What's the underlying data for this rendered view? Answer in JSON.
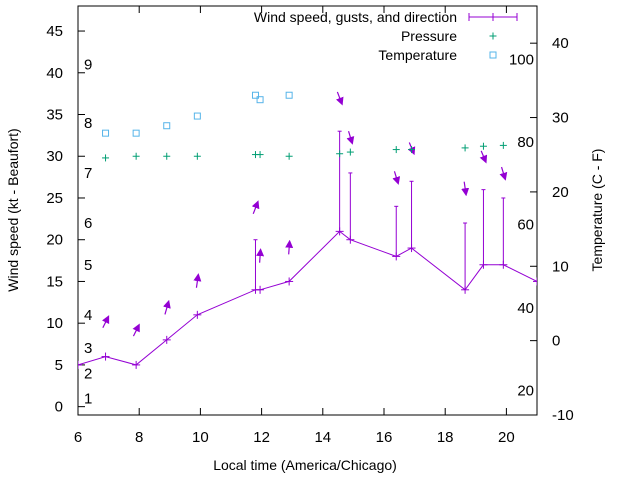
{
  "chart_data": {
    "type": "line",
    "xlabel": "Local time (America/Chicago)",
    "ylabel": "Wind speed (kt - Beaufort)",
    "y2label": "Temperature (C - F)",
    "xlim": [
      6,
      21
    ],
    "ylim": [
      -1,
      48
    ],
    "y2lim": [
      -10,
      45
    ],
    "x_ticks": [
      6,
      8,
      10,
      12,
      14,
      16,
      18,
      20
    ],
    "y_ticks": [
      0,
      5,
      10,
      15,
      20,
      25,
      30,
      35,
      40,
      45
    ],
    "y2_ticks": [
      -10,
      0,
      10,
      20,
      30,
      40
    ],
    "fahrenheit_labels": [
      {
        "label": "20",
        "celsius": -6.7
      },
      {
        "label": "40",
        "celsius": 4.4
      },
      {
        "label": "60",
        "celsius": 15.6
      },
      {
        "label": "80",
        "celsius": 26.7
      },
      {
        "label": "100",
        "celsius": 37.8
      }
    ],
    "beaufort_labels": [
      {
        "label": "1",
        "kt": 1
      },
      {
        "label": "2",
        "kt": 4
      },
      {
        "label": "3",
        "kt": 7
      },
      {
        "label": "4",
        "kt": 11
      },
      {
        "label": "5",
        "kt": 17
      },
      {
        "label": "6",
        "kt": 22
      },
      {
        "label": "7",
        "kt": 28
      },
      {
        "label": "8",
        "kt": 34
      },
      {
        "label": "9",
        "kt": 41
      }
    ],
    "legend_position": "top-right",
    "series": [
      {
        "name": "Wind speed, gusts, and direction",
        "color": "#9400d3",
        "x": [
          6,
          6.9,
          7.9,
          8.9,
          9.9,
          11.8,
          11.95,
          12.9,
          14.55,
          14.9,
          16.4,
          16.9,
          18.65,
          19.25,
          19.9,
          21
        ],
        "y": [
          5,
          6,
          5,
          8,
          11,
          14,
          14,
          15,
          21,
          20,
          18,
          19,
          14,
          17,
          17,
          15
        ],
        "gusts": [
          null,
          null,
          null,
          null,
          null,
          20,
          null,
          null,
          33,
          28,
          24,
          27,
          22,
          26,
          25,
          null
        ],
        "direction_arrows": [
          {
            "x": 6.9,
            "y": 10.1,
            "dx": 0.3,
            "dy": -0.6
          },
          {
            "x": 7.9,
            "y": 9.1,
            "dx": 0.3,
            "dy": -0.6
          },
          {
            "x": 8.9,
            "y": 11.8,
            "dx": 0.2,
            "dy": -0.7
          },
          {
            "x": 9.9,
            "y": 15.0,
            "dx": 0.1,
            "dy": -0.7
          },
          {
            "x": 11.8,
            "y": 23.8,
            "dx": 0.25,
            "dy": -0.65
          },
          {
            "x": 11.95,
            "y": 18.0,
            "dx": 0.05,
            "dy": -0.7
          },
          {
            "x": 12.9,
            "y": 19.0,
            "dx": 0.05,
            "dy": -0.7
          },
          {
            "x": 14.55,
            "y": 37.0,
            "dx": 0.25,
            "dy": 0.65
          },
          {
            "x": 14.9,
            "y": 32.3,
            "dx": 0.2,
            "dy": 0.65
          },
          {
            "x": 16.4,
            "y": 27.5,
            "dx": 0.2,
            "dy": 0.65
          },
          {
            "x": 16.9,
            "y": 31.0,
            "dx": 0.25,
            "dy": 0.6
          },
          {
            "x": 18.65,
            "y": 26.2,
            "dx": 0.1,
            "dy": 0.7
          },
          {
            "x": 19.25,
            "y": 30.0,
            "dx": 0.25,
            "dy": 0.6
          },
          {
            "x": 19.9,
            "y": 28.0,
            "dx": 0.2,
            "dy": 0.65
          }
        ]
      },
      {
        "name": "Pressure",
        "color": "#009e73",
        "marker": "plus",
        "x": [
          6.9,
          7.9,
          8.9,
          9.9,
          11.8,
          11.95,
          12.9,
          14.55,
          14.9,
          16.4,
          16.9,
          18.65,
          19.25,
          19.9
        ],
        "y": [
          29.8,
          30.0,
          30.0,
          30.0,
          30.2,
          30.2,
          30.0,
          30.3,
          30.5,
          30.8,
          30.8,
          31.0,
          31.2,
          31.3
        ]
      },
      {
        "name": "Temperature",
        "color": "#56b4e9",
        "marker": "square",
        "axis": "y2",
        "x": [
          6.9,
          7.9,
          8.9,
          9.9,
          11.8,
          11.95,
          12.9
        ],
        "y": [
          27.9,
          27.9,
          28.9,
          30.2,
          33.0,
          32.4,
          33.0
        ]
      }
    ]
  }
}
